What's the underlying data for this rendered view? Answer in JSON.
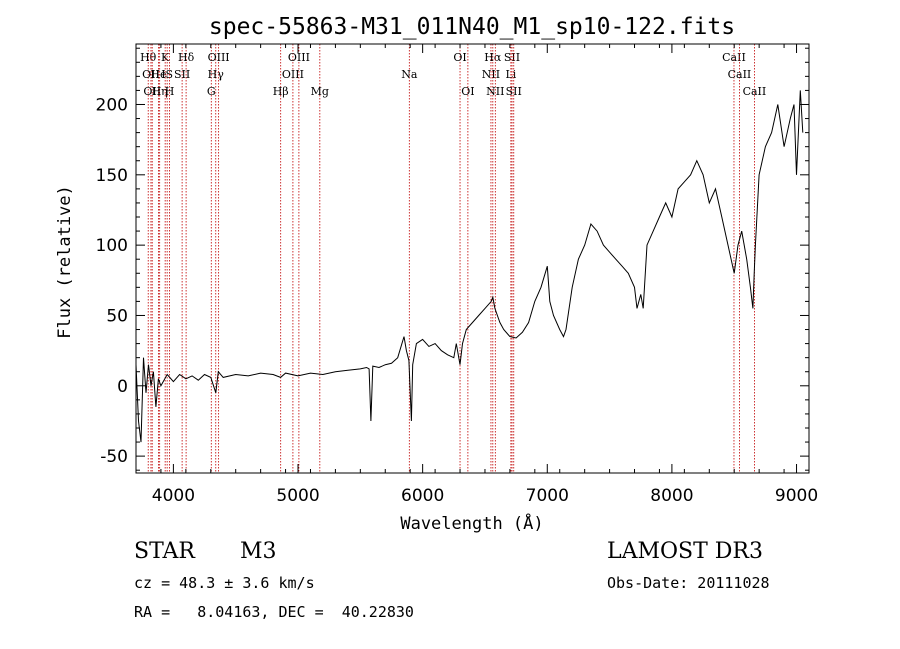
{
  "chart_data": {
    "type": "line",
    "title": "spec-55863-M31_011N40_M1_sp10-122.fits",
    "xlabel": "Wavelength (Å)",
    "ylabel": "Flux (relative)",
    "xlim": [
      3700,
      9100
    ],
    "ylim": [
      -62,
      243
    ],
    "xticks": [
      4000,
      5000,
      6000,
      7000,
      8000,
      9000
    ],
    "yticks": [
      -50,
      0,
      50,
      100,
      150,
      200
    ],
    "line_color": "#000000",
    "marker_color": "#c00000",
    "spectrum": {
      "x": [
        3700,
        3720,
        3740,
        3760,
        3780,
        3800,
        3820,
        3840,
        3860,
        3880,
        3900,
        3950,
        4000,
        4050,
        4100,
        4150,
        4200,
        4250,
        4300,
        4340,
        4360,
        4400,
        4500,
        4600,
        4700,
        4800,
        4860,
        4900,
        5000,
        5100,
        5200,
        5300,
        5400,
        5500,
        5550,
        5570,
        5585,
        5600,
        5650,
        5700,
        5750,
        5800,
        5850,
        5870,
        5890,
        5910,
        5920,
        5950,
        6000,
        6050,
        6100,
        6150,
        6200,
        6250,
        6270,
        6300,
        6320,
        6350,
        6400,
        6450,
        6500,
        6550,
        6563,
        6580,
        6600,
        6620,
        6650,
        6700,
        6750,
        6800,
        6850,
        6900,
        6950,
        7000,
        7020,
        7050,
        7100,
        7130,
        7150,
        7200,
        7250,
        7300,
        7350,
        7400,
        7450,
        7500,
        7550,
        7600,
        7650,
        7700,
        7720,
        7750,
        7770,
        7800,
        7850,
        7900,
        7950,
        8000,
        8050,
        8100,
        8150,
        8200,
        8250,
        8300,
        8350,
        8400,
        8450,
        8500,
        8530,
        8560,
        8600,
        8630,
        8650,
        8660,
        8670,
        8700,
        8750,
        8800,
        8850,
        8900,
        8950,
        8980,
        9000,
        9030,
        9050
      ],
      "y": [
        15,
        -25,
        -40,
        20,
        -5,
        15,
        0,
        10,
        -15,
        5,
        0,
        8,
        3,
        8,
        5,
        7,
        4,
        8,
        6,
        -5,
        10,
        6,
        8,
        7,
        9,
        8,
        6,
        9,
        7,
        9,
        8,
        10,
        11,
        12,
        13,
        12,
        -25,
        14,
        13,
        15,
        16,
        20,
        35,
        25,
        18,
        -25,
        15,
        30,
        33,
        28,
        30,
        25,
        22,
        20,
        30,
        15,
        30,
        40,
        45,
        50,
        55,
        60,
        63,
        55,
        50,
        45,
        40,
        35,
        34,
        38,
        45,
        60,
        70,
        85,
        60,
        50,
        40,
        35,
        40,
        70,
        90,
        100,
        115,
        110,
        100,
        95,
        90,
        85,
        80,
        70,
        55,
        65,
        55,
        100,
        110,
        120,
        130,
        120,
        140,
        145,
        150,
        160,
        150,
        130,
        140,
        120,
        100,
        80,
        100,
        110,
        90,
        70,
        55,
        80,
        100,
        150,
        170,
        180,
        200,
        170,
        190,
        200,
        150,
        210,
        180
      ]
    },
    "lines": [
      {
        "wavelength": 3798,
        "row": 1,
        "label": "Hθ"
      },
      {
        "wavelength": 3820,
        "row": 2,
        "label": "OII"
      },
      {
        "wavelength": 3830,
        "row": 3,
        "label": "OII"
      },
      {
        "wavelength": 3880,
        "row": 2,
        "label": "He"
      },
      {
        "wavelength": 3890,
        "row": 3,
        "label": "Hη"
      },
      {
        "wavelength": 3934,
        "row": 1,
        "label": "K"
      },
      {
        "wavelength": 3950,
        "row": 2,
        "label": "IS"
      },
      {
        "wavelength": 3969,
        "row": 3,
        "label": "H"
      },
      {
        "wavelength": 4070,
        "row": 2,
        "label": "SII"
      },
      {
        "wavelength": 4102,
        "row": 1,
        "label": "Hδ"
      },
      {
        "wavelength": 4304,
        "row": 3,
        "label": "G"
      },
      {
        "wavelength": 4340,
        "row": 2,
        "label": "Hγ"
      },
      {
        "wavelength": 4363,
        "row": 1,
        "label": "OIII"
      },
      {
        "wavelength": 4861,
        "row": 3,
        "label": "Hβ"
      },
      {
        "wavelength": 4959,
        "row": 2,
        "label": "OIII"
      },
      {
        "wavelength": 5007,
        "row": 1,
        "label": "OIII"
      },
      {
        "wavelength": 5175,
        "row": 3,
        "label": "Mg"
      },
      {
        "wavelength": 5893,
        "row": 2,
        "label": "Na"
      },
      {
        "wavelength": 6300,
        "row": 1,
        "label": "OI"
      },
      {
        "wavelength": 6363,
        "row": 3,
        "label": "OI"
      },
      {
        "wavelength": 6548,
        "row": 2,
        "label": "NII"
      },
      {
        "wavelength": 6563,
        "row": 1,
        "label": "Hα"
      },
      {
        "wavelength": 6583,
        "row": 3,
        "label": "NII"
      },
      {
        "wavelength": 6708,
        "row": 2,
        "label": "Li"
      },
      {
        "wavelength": 6717,
        "row": 1,
        "label": "SII"
      },
      {
        "wavelength": 6731,
        "row": 3,
        "label": "SII"
      },
      {
        "wavelength": 8498,
        "row": 1,
        "label": "CaII"
      },
      {
        "wavelength": 8542,
        "row": 2,
        "label": "CaII"
      },
      {
        "wavelength": 8662,
        "row": 3,
        "label": "CaII"
      }
    ]
  },
  "info": {
    "class": "STAR",
    "subclass": "M3",
    "survey": "LAMOST DR3",
    "cz": "cz = 48.3 ± 3.6 km/s",
    "obs_date": "Obs-Date: 20111028",
    "coords": "RA =   8.04163, DEC =  40.22830"
  }
}
